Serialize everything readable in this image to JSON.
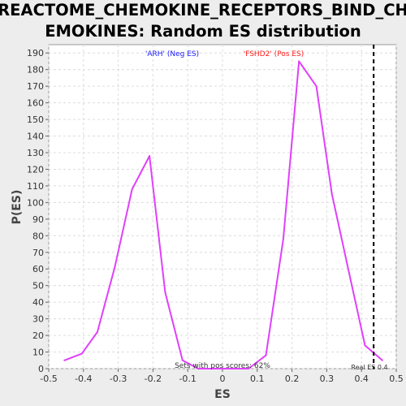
{
  "chart_data": {
    "type": "line",
    "title": "REACTOME_CHEMOKINE_RECEPTORS_BIND_CHEMOKINES: Random ES distribution",
    "title_lines": [
      "REACTOME_CHEMOKINE_RECEPTORS_BIND_CH",
      "EMOKINES: Random ES distribution"
    ],
    "xlabel": "ES",
    "ylabel": "P(ES)",
    "xlim": [
      -0.5,
      0.5
    ],
    "ylim": [
      0,
      195
    ],
    "x_ticks": [
      -0.5,
      -0.4,
      -0.3,
      -0.2,
      -0.1,
      0,
      0.1,
      0.2,
      0.3,
      0.4,
      0.5
    ],
    "x_tick_labels": [
      "-0.5",
      "-0.4",
      "-0.3",
      "-0.2",
      "-0.1",
      "0",
      "0.1",
      "0.2",
      "0.3",
      "0.4",
      "0.5"
    ],
    "y_ticks": [
      0,
      10,
      20,
      30,
      40,
      50,
      60,
      70,
      80,
      90,
      100,
      110,
      120,
      130,
      140,
      150,
      160,
      170,
      180,
      190
    ],
    "y_tick_labels": [
      "0",
      "10",
      "20",
      "30",
      "40",
      "50",
      "60",
      "70",
      "80",
      "90",
      "100",
      "110",
      "120",
      "130",
      "140",
      "150",
      "160",
      "170",
      "180",
      "190"
    ],
    "grid": true,
    "series": [
      {
        "color": "#e040fb",
        "x": [
          -0.455,
          -0.405,
          -0.36,
          -0.31,
          -0.26,
          -0.21,
          -0.165,
          -0.115,
          -0.07,
          -0.02,
          0.025,
          0.075,
          0.125,
          0.175,
          0.22,
          0.27,
          0.315,
          0.365,
          0.41,
          0.46
        ],
        "y": [
          5,
          9,
          22,
          61,
          108,
          128,
          46,
          5,
          0,
          0,
          0,
          0,
          8,
          78,
          185,
          170,
          105,
          57,
          14,
          5
        ]
      }
    ],
    "real_es": {
      "x": 0.435,
      "label": "Real ES 0.4",
      "color": "#000000"
    },
    "annotations": [
      {
        "text": "'ARH' (Neg ES)",
        "color": "#1a1aff"
      },
      {
        "text": "'FSHD2' (Pos ES)",
        "color": "#ff1a1a"
      },
      {
        "text": "Sets with pos scores: 62%",
        "color": "#333333"
      }
    ],
    "colors": {
      "background": "#ededed",
      "plot_background": "#ffffff",
      "grid": "#dcdcdc"
    }
  }
}
